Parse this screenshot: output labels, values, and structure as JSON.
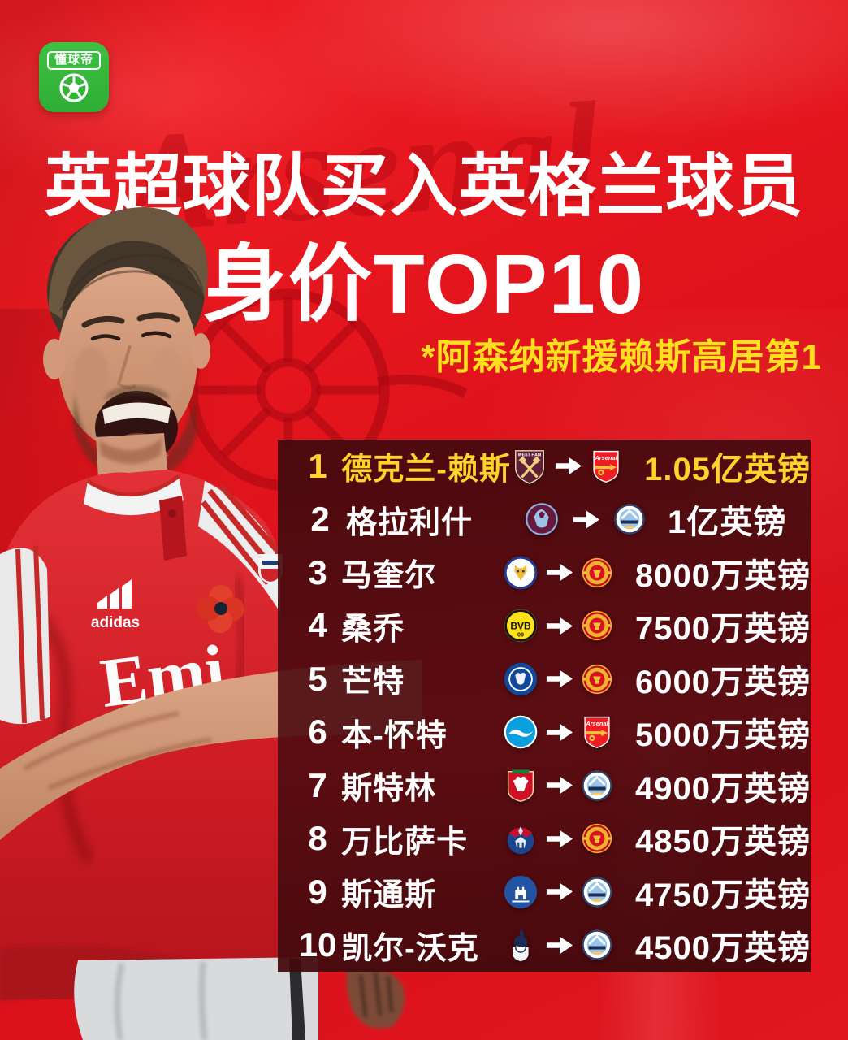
{
  "colors": {
    "background_red": "#e4151d",
    "panel_maroon": "#4a0c10",
    "highlight_gold": "#ffd22e",
    "subtitle_yellow": "#ffdf1e",
    "logo_green": "#2fae35",
    "text_white": "#ffffff"
  },
  "logo": {
    "app_name": "懂球帝"
  },
  "header": {
    "title_line1": "英超球队买入英格兰球员",
    "title_line2": "身价TOP10",
    "subtitle": "*阿森纳新援赖斯高居第1"
  },
  "jersey": {
    "brand": "adidas",
    "sponsor_partial": "Emi"
  },
  "clubs": {
    "west-ham": {
      "name": "West Ham United",
      "badge_text": "WEST HAM"
    },
    "arsenal": {
      "name": "Arsenal",
      "badge_text": "Arsenal"
    },
    "aston-villa": {
      "name": "Aston Villa",
      "badge_text": ""
    },
    "man-city": {
      "name": "Manchester City",
      "badge_text": ""
    },
    "leicester": {
      "name": "Leicester City",
      "badge_text": ""
    },
    "man-united": {
      "name": "Manchester United",
      "badge_text": ""
    },
    "dortmund": {
      "name": "Borussia Dortmund",
      "badge_text": "BVB",
      "badge_text2": "09"
    },
    "chelsea": {
      "name": "Chelsea",
      "badge_text": ""
    },
    "brighton": {
      "name": "Brighton",
      "badge_text": ""
    },
    "liverpool": {
      "name": "Liverpool",
      "badge_text": ""
    },
    "crystal-palace": {
      "name": "Crystal Palace",
      "badge_text": ""
    },
    "everton": {
      "name": "Everton",
      "badge_text": ""
    },
    "tottenham": {
      "name": "Tottenham Hotspur",
      "badge_text": ""
    }
  },
  "table": {
    "rows": [
      {
        "rank": "1",
        "player": "德克兰-赖斯",
        "from_club": "west-ham",
        "to_club": "arsenal",
        "fee": "1.05亿英镑",
        "highlight": true
      },
      {
        "rank": "2",
        "player": "格拉利什",
        "from_club": "aston-villa",
        "to_club": "man-city",
        "fee": "1亿英镑",
        "highlight": false
      },
      {
        "rank": "3",
        "player": "马奎尔",
        "from_club": "leicester",
        "to_club": "man-united",
        "fee": "8000万英镑",
        "highlight": false
      },
      {
        "rank": "4",
        "player": "桑乔",
        "from_club": "dortmund",
        "to_club": "man-united",
        "fee": "7500万英镑",
        "highlight": false
      },
      {
        "rank": "5",
        "player": "芒特",
        "from_club": "chelsea",
        "to_club": "man-united",
        "fee": "6000万英镑",
        "highlight": false
      },
      {
        "rank": "6",
        "player": "本-怀特",
        "from_club": "brighton",
        "to_club": "arsenal",
        "fee": "5000万英镑",
        "highlight": false
      },
      {
        "rank": "7",
        "player": "斯特林",
        "from_club": "liverpool",
        "to_club": "man-city",
        "fee": "4900万英镑",
        "highlight": false
      },
      {
        "rank": "8",
        "player": "万比萨卡",
        "from_club": "crystal-palace",
        "to_club": "man-united",
        "fee": "4850万英镑",
        "highlight": false
      },
      {
        "rank": "9",
        "player": "斯通斯",
        "from_club": "everton",
        "to_club": "man-city",
        "fee": "4750万英镑",
        "highlight": false
      },
      {
        "rank": "10",
        "player": "凯尔-沃克",
        "from_club": "tottenham",
        "to_club": "man-city",
        "fee": "4500万英镑",
        "highlight": false
      }
    ]
  }
}
